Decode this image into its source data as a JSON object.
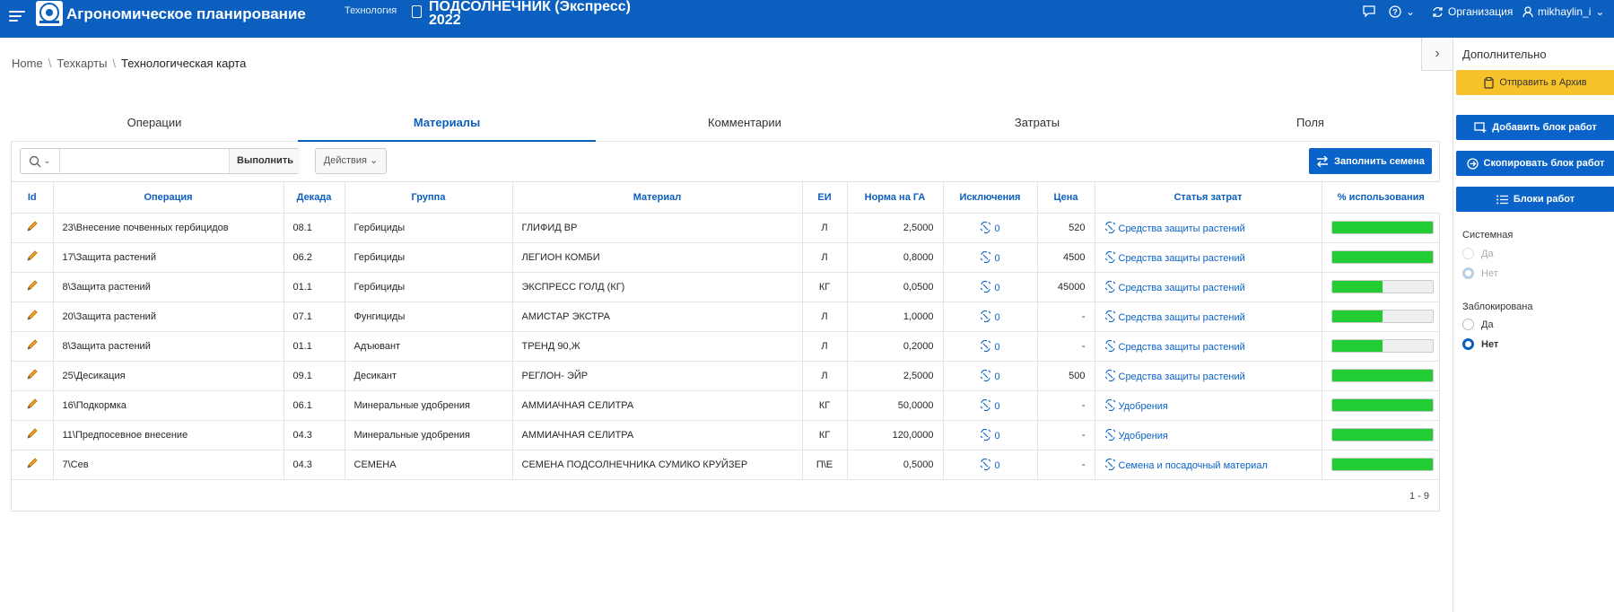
{
  "header": {
    "app_title": "Агрономическое планирование",
    "section_label": "Технология",
    "doc_title": "ПОДСОЛНЕЧНИК (Экспресс) 2022",
    "organization_label": "Организация",
    "user_label": "mikhaylin_i",
    "bg_color": "#0a5fbf"
  },
  "breadcrumb": [
    "Home",
    "Техкарты",
    "Технологическая карта"
  ],
  "tabs": [
    {
      "label": "Операции",
      "active": false
    },
    {
      "label": "Материалы",
      "active": true
    },
    {
      "label": "Комментарии",
      "active": false
    },
    {
      "label": "Затраты",
      "active": false
    },
    {
      "label": "Поля",
      "active": false
    }
  ],
  "toolbar": {
    "search_value": "",
    "go_label": "Выполнить",
    "actions_label": "Действия",
    "fill_seeds_label": "Заполнить семена"
  },
  "table": {
    "columns": [
      "Id",
      "Операция",
      "Декада",
      "Группа",
      "Материал",
      "ЕИ",
      "Норма на ГА",
      "Исключения",
      "Цена",
      "Статья затрат",
      "% использования"
    ],
    "rows": [
      {
        "operation": "23\\Внесение почвенных гербицидов",
        "decade": "08.1",
        "group": "Гербициды",
        "material": "ГЛИФИД ВР",
        "unit": "Л",
        "norm": "2,5000",
        "exclusions": "0",
        "price": "520",
        "cost_item": "Средства защиты растений",
        "usage": 1.0
      },
      {
        "operation": "17\\Защита растений",
        "decade": "06.2",
        "group": "Гербициды",
        "material": "ЛЕГИОН КОМБИ",
        "unit": "Л",
        "norm": "0,8000",
        "exclusions": "0",
        "price": "4500",
        "cost_item": "Средства защиты растений",
        "usage": 1.0
      },
      {
        "operation": "8\\Защита растений",
        "decade": "01.1",
        "group": "Гербициды",
        "material": "ЭКСПРЕСС ГОЛД (КГ)",
        "unit": "КГ",
        "norm": "0,0500",
        "exclusions": "0",
        "price": "45000",
        "cost_item": "Средства защиты растений",
        "usage": 0.5
      },
      {
        "operation": "20\\Защита растений",
        "decade": "07.1",
        "group": "Фунгициды",
        "material": "АМИСТАР ЭКСТРА",
        "unit": "Л",
        "norm": "1,0000",
        "exclusions": "0",
        "price": "-",
        "cost_item": "Средства защиты растений",
        "usage": 0.5
      },
      {
        "operation": "8\\Защита растений",
        "decade": "01.1",
        "group": "Адъювант",
        "material": "ТРЕНД 90,Ж",
        "unit": "Л",
        "norm": "0,2000",
        "exclusions": "0",
        "price": "-",
        "cost_item": "Средства защиты растений",
        "usage": 0.5
      },
      {
        "operation": "25\\Десикация",
        "decade": "09.1",
        "group": "Десикант",
        "material": "РЕГЛОН- ЭЙР",
        "unit": "Л",
        "norm": "2,5000",
        "exclusions": "0",
        "price": "500",
        "cost_item": "Средства защиты растений",
        "usage": 1.0
      },
      {
        "operation": "16\\Подкормка",
        "decade": "06.1",
        "group": "Минеральные удобрения",
        "material": "АММИАЧНАЯ СЕЛИТРА",
        "unit": "КГ",
        "norm": "50,0000",
        "exclusions": "0",
        "price": "-",
        "cost_item": "Удобрения",
        "usage": 1.0
      },
      {
        "operation": "11\\Предпосевное внесение",
        "decade": "04.3",
        "group": "Минеральные удобрения",
        "material": "АММИАЧНАЯ СЕЛИТРА",
        "unit": "КГ",
        "norm": "120,0000",
        "exclusions": "0",
        "price": "-",
        "cost_item": "Удобрения",
        "usage": 1.0
      },
      {
        "operation": "7\\Сев",
        "decade": "04.3",
        "group": "СЕМЕНА",
        "material": "СЕМЕНА ПОДСОЛНЕЧНИКА СУМИКО КРУЙЗЕР",
        "unit": "П\\Е",
        "norm": "0,5000",
        "exclusions": "0",
        "price": "-",
        "cost_item": "Семена и посадочный материал",
        "usage": 1.0
      }
    ],
    "pagination": "1 - 9"
  },
  "right_panel": {
    "title": "Дополнительно",
    "archive_label": "Отправить в Архив",
    "add_block_label": "Добавить блок работ",
    "copy_block_label": "Скопировать блок работ",
    "blocks_label": "Блоки работ",
    "system_label": "Системная",
    "system_yes": "Да",
    "system_no": "Нет",
    "locked_label": "Заблокирована",
    "locked_yes": "Да",
    "locked_no": "Нет"
  },
  "colors": {
    "accent": "#0a5fbf",
    "usage_fill": "#22cc33",
    "archive": "#f7c229"
  }
}
